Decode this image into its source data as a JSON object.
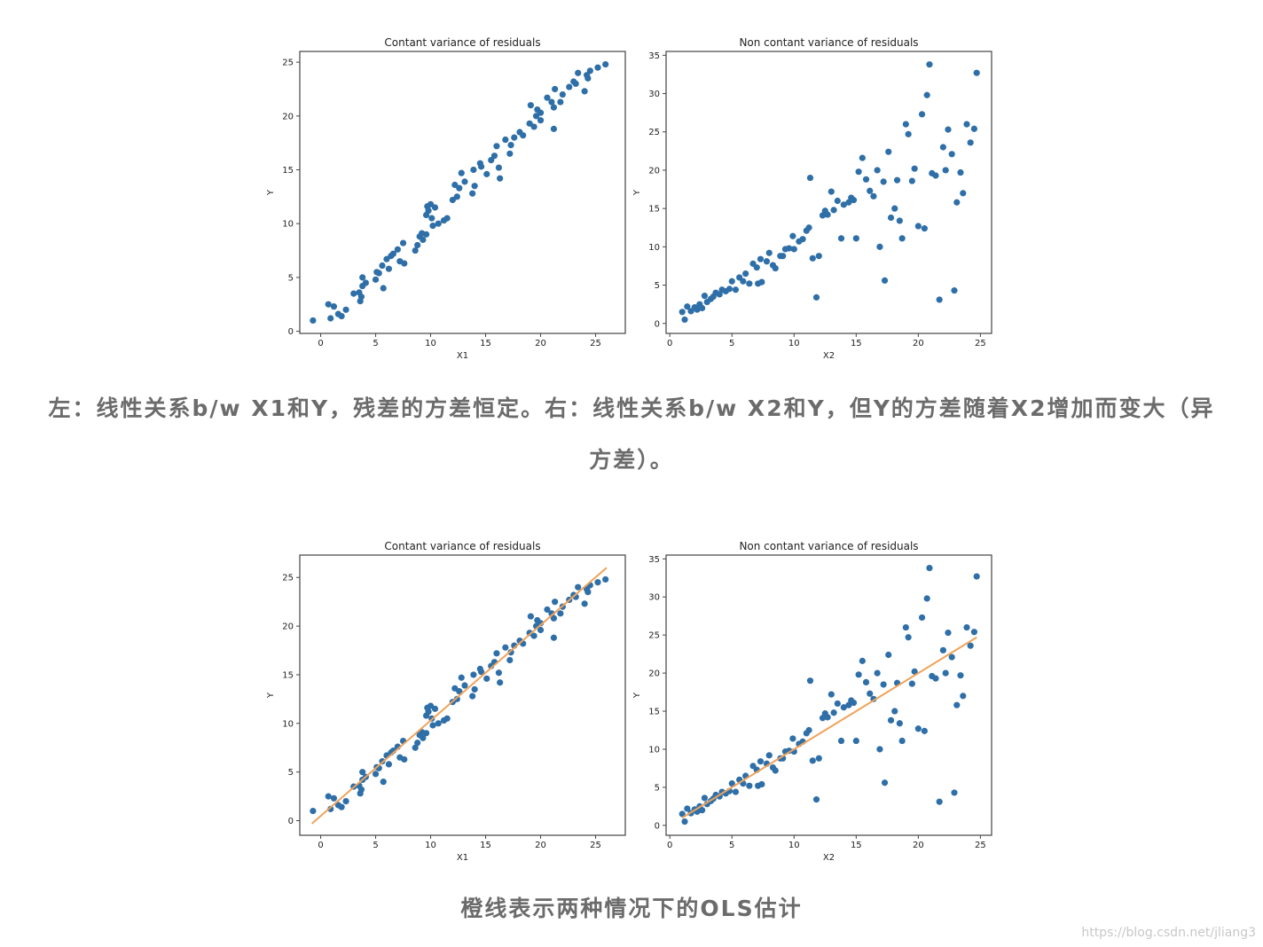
{
  "captions": [
    "左：线性关系b/w X1和Y，残差的方差恒定。右：线性关系b/w X2和Y，但Y的方差随着X2增加而变大（异方差）。",
    "橙线表示两种情况下的OLS估计"
  ],
  "watermark": "https://blog.csdn.net/jliang3",
  "chart_data": [
    {
      "type": "scatter",
      "title": "Contant variance of residuals",
      "xlabel": "X1",
      "ylabel": "Y",
      "xlim": [
        -1.9,
        27.7
      ],
      "ylim": [
        -0.2,
        26.0
      ],
      "xticks": [
        0,
        5,
        10,
        15,
        20,
        25
      ],
      "yticks": [
        0,
        5,
        10,
        15,
        20,
        25
      ],
      "series": [
        {
          "mode": "markers",
          "color": "#2f6fa8",
          "x": [
            -0.7,
            0.7,
            0.9,
            1.2,
            1.6,
            1.9,
            2.3,
            3.0,
            3.5,
            3.6,
            3.7,
            3.8,
            3.8,
            4.1,
            5.0,
            5.1,
            5.3,
            5.6,
            5.7,
            6.0,
            6.2,
            6.4,
            6.6,
            7.0,
            7.2,
            7.5,
            7.6,
            8.6,
            8.8,
            9.0,
            9.2,
            9.3,
            9.6,
            9.6,
            9.7,
            9.8,
            10.0,
            10.1,
            10.2,
            10.4,
            10.7,
            11.2,
            11.5,
            12.0,
            12.2,
            12.4,
            12.6,
            12.8,
            13.1,
            13.8,
            13.9,
            14.0,
            14.5,
            14.6,
            15.1,
            15.5,
            15.8,
            16.0,
            16.2,
            16.3,
            16.8,
            17.2,
            17.3,
            17.6,
            18.1,
            18.4,
            19.0,
            19.1,
            19.4,
            19.6,
            19.7,
            20.0,
            20.0,
            20.6,
            21.0,
            21.2,
            21.3,
            21.2,
            21.8,
            22.0,
            22.6,
            23.0,
            23.2,
            23.4,
            24.0,
            24.2,
            24.3,
            24.5,
            25.2,
            25.9
          ],
          "values": [
            1.0,
            2.5,
            1.2,
            2.3,
            1.6,
            1.4,
            2.0,
            3.5,
            3.6,
            2.8,
            3.2,
            4.2,
            5.0,
            4.5,
            4.8,
            5.5,
            5.4,
            6.1,
            4.0,
            6.7,
            5.8,
            7.0,
            7.2,
            7.6,
            6.5,
            8.2,
            6.3,
            7.5,
            8.0,
            8.8,
            9.1,
            8.5,
            9.0,
            10.8,
            11.6,
            11.2,
            11.8,
            10.5,
            9.8,
            11.5,
            10.0,
            10.3,
            10.5,
            12.2,
            13.6,
            12.5,
            13.3,
            14.7,
            13.9,
            12.8,
            15.0,
            13.5,
            15.6,
            15.3,
            14.6,
            15.9,
            16.3,
            17.2,
            15.2,
            14.2,
            17.8,
            16.5,
            17.3,
            18.0,
            18.5,
            18.2,
            19.3,
            21.0,
            19.0,
            20.0,
            20.6,
            20.3,
            19.6,
            21.7,
            21.3,
            18.8,
            22.5,
            20.8,
            21.3,
            22.0,
            22.7,
            23.2,
            23.0,
            24.0,
            22.3,
            23.8,
            23.5,
            24.2,
            24.5,
            24.8
          ]
        }
      ]
    },
    {
      "type": "scatter",
      "title": "Non contant variance of residuals",
      "xlabel": "X2",
      "ylabel": "Y",
      "xlim": [
        -0.3,
        25.9
      ],
      "ylim": [
        -1.3,
        35.5
      ],
      "xticks": [
        0,
        5,
        10,
        15,
        20,
        25
      ],
      "yticks": [
        0,
        5,
        10,
        15,
        20,
        25,
        30,
        35
      ],
      "series": [
        {
          "mode": "markers",
          "color": "#2f6fa8",
          "x": [
            1.0,
            1.2,
            1.4,
            1.7,
            2.0,
            2.2,
            2.4,
            2.6,
            2.8,
            3.0,
            3.3,
            3.5,
            3.7,
            4.0,
            4.2,
            4.5,
            4.8,
            5.0,
            5.3,
            5.6,
            5.9,
            6.1,
            6.4,
            6.7,
            7.0,
            7.1,
            7.3,
            7.4,
            7.8,
            8.0,
            8.3,
            8.5,
            8.9,
            9.1,
            9.3,
            9.6,
            9.9,
            10.0,
            10.4,
            10.7,
            11.0,
            11.2,
            11.3,
            11.5,
            11.8,
            12.0,
            12.3,
            12.5,
            12.7,
            13.0,
            13.2,
            13.5,
            13.8,
            14.0,
            14.4,
            14.6,
            14.8,
            15.0,
            15.2,
            15.5,
            15.8,
            16.1,
            16.4,
            16.7,
            16.9,
            17.2,
            17.3,
            17.6,
            17.8,
            18.1,
            18.3,
            18.5,
            18.7,
            19.0,
            19.2,
            19.5,
            19.7,
            20.0,
            20.3,
            20.5,
            20.7,
            20.9,
            21.1,
            21.4,
            21.7,
            22.0,
            22.2,
            22.4,
            22.7,
            22.9,
            23.1,
            23.4,
            23.6,
            23.9,
            24.2,
            24.5,
            24.7
          ],
          "values": [
            1.5,
            0.5,
            2.2,
            1.6,
            2.1,
            1.8,
            2.5,
            2.0,
            3.6,
            2.8,
            3.2,
            3.5,
            4.0,
            3.8,
            4.4,
            4.2,
            4.5,
            5.5,
            4.4,
            6.0,
            5.5,
            6.5,
            5.2,
            7.8,
            7.3,
            5.2,
            8.4,
            5.4,
            8.1,
            9.2,
            7.6,
            7.2,
            8.8,
            8.8,
            9.7,
            9.8,
            11.4,
            9.7,
            10.7,
            11.0,
            12.1,
            12.5,
            19.0,
            8.5,
            3.4,
            8.8,
            14.1,
            14.7,
            14.2,
            17.2,
            14.8,
            16.0,
            11.1,
            15.5,
            15.8,
            16.4,
            16.1,
            11.1,
            19.8,
            21.6,
            18.8,
            17.3,
            16.6,
            20.0,
            10.0,
            18.5,
            5.6,
            22.4,
            13.8,
            15.0,
            18.7,
            13.4,
            11.1,
            26.0,
            24.7,
            18.6,
            20.2,
            12.7,
            27.3,
            12.4,
            29.8,
            33.8,
            19.6,
            19.3,
            3.1,
            23.0,
            20.0,
            25.3,
            22.1,
            4.3,
            15.8,
            19.7,
            17.0,
            26.0,
            23.6,
            25.4,
            32.7
          ]
        }
      ]
    },
    {
      "type": "scatter",
      "title": "Contant variance of residuals",
      "xlabel": "X1",
      "ylabel": "Y",
      "xlim": [
        -1.9,
        27.7
      ],
      "ylim": [
        -1.5,
        27.3
      ],
      "xticks": [
        0,
        5,
        10,
        15,
        20,
        25
      ],
      "yticks": [
        0,
        5,
        10,
        15,
        20,
        25
      ],
      "series": [
        {
          "mode": "markers",
          "color": "#2f6fa8",
          "x": [
            -0.7,
            0.7,
            0.9,
            1.2,
            1.6,
            1.9,
            2.3,
            3.0,
            3.5,
            3.6,
            3.7,
            3.8,
            3.8,
            4.1,
            5.0,
            5.1,
            5.3,
            5.6,
            5.7,
            6.0,
            6.2,
            6.4,
            6.6,
            7.0,
            7.2,
            7.5,
            7.6,
            8.6,
            8.8,
            9.0,
            9.2,
            9.3,
            9.6,
            9.6,
            9.7,
            9.8,
            10.0,
            10.1,
            10.2,
            10.4,
            10.7,
            11.2,
            11.5,
            12.0,
            12.2,
            12.4,
            12.6,
            12.8,
            13.1,
            13.8,
            13.9,
            14.0,
            14.5,
            14.6,
            15.1,
            15.5,
            15.8,
            16.0,
            16.2,
            16.3,
            16.8,
            17.2,
            17.3,
            17.6,
            18.1,
            18.4,
            19.0,
            19.1,
            19.4,
            19.6,
            19.7,
            20.0,
            20.0,
            20.6,
            21.0,
            21.2,
            21.3,
            21.2,
            21.8,
            22.0,
            22.6,
            23.0,
            23.2,
            23.4,
            24.0,
            24.2,
            24.3,
            24.5,
            25.2,
            25.9
          ],
          "values": [
            1.0,
            2.5,
            1.2,
            2.3,
            1.6,
            1.4,
            2.0,
            3.5,
            3.6,
            2.8,
            3.2,
            4.2,
            5.0,
            4.5,
            4.8,
            5.5,
            5.4,
            6.1,
            4.0,
            6.7,
            5.8,
            7.0,
            7.2,
            7.6,
            6.5,
            8.2,
            6.3,
            7.5,
            8.0,
            8.8,
            9.1,
            8.5,
            9.0,
            10.8,
            11.6,
            11.2,
            11.8,
            10.5,
            9.8,
            11.5,
            10.0,
            10.3,
            10.5,
            12.2,
            13.6,
            12.5,
            13.3,
            14.7,
            13.9,
            12.8,
            15.0,
            13.5,
            15.6,
            15.3,
            14.6,
            15.9,
            16.3,
            17.2,
            15.2,
            14.2,
            17.8,
            16.5,
            17.3,
            18.0,
            18.5,
            18.2,
            19.3,
            21.0,
            19.0,
            20.0,
            20.6,
            20.3,
            19.6,
            21.7,
            21.3,
            18.8,
            22.5,
            20.8,
            21.3,
            22.0,
            22.7,
            23.2,
            23.0,
            24.0,
            22.3,
            23.8,
            23.5,
            24.2,
            24.5,
            24.8
          ]
        },
        {
          "mode": "line",
          "color": "#f0a35a",
          "x": [
            -0.8,
            26.0
          ],
          "values": [
            -0.3,
            26.0
          ]
        }
      ]
    },
    {
      "type": "scatter",
      "title": "Non contant variance of residuals",
      "xlabel": "X2",
      "ylabel": "Y",
      "xlim": [
        -0.3,
        25.9
      ],
      "ylim": [
        -1.3,
        35.5
      ],
      "xticks": [
        0,
        5,
        10,
        15,
        20,
        25
      ],
      "yticks": [
        0,
        5,
        10,
        15,
        20,
        25,
        30,
        35
      ],
      "series": [
        {
          "mode": "markers",
          "color": "#2f6fa8",
          "x": [
            1.0,
            1.2,
            1.4,
            1.7,
            2.0,
            2.2,
            2.4,
            2.6,
            2.8,
            3.0,
            3.3,
            3.5,
            3.7,
            4.0,
            4.2,
            4.5,
            4.8,
            5.0,
            5.3,
            5.6,
            5.9,
            6.1,
            6.4,
            6.7,
            7.0,
            7.1,
            7.3,
            7.4,
            7.8,
            8.0,
            8.3,
            8.5,
            8.9,
            9.1,
            9.3,
            9.6,
            9.9,
            10.0,
            10.4,
            10.7,
            11.0,
            11.2,
            11.3,
            11.5,
            11.8,
            12.0,
            12.3,
            12.5,
            12.7,
            13.0,
            13.2,
            13.5,
            13.8,
            14.0,
            14.4,
            14.6,
            14.8,
            15.0,
            15.2,
            15.5,
            15.8,
            16.1,
            16.4,
            16.7,
            16.9,
            17.2,
            17.3,
            17.6,
            17.8,
            18.1,
            18.3,
            18.5,
            18.7,
            19.0,
            19.2,
            19.5,
            19.7,
            20.0,
            20.3,
            20.5,
            20.7,
            20.9,
            21.1,
            21.4,
            21.7,
            22.0,
            22.2,
            22.4,
            22.7,
            22.9,
            23.1,
            23.4,
            23.6,
            23.9,
            24.2,
            24.5,
            24.7
          ],
          "values": [
            1.5,
            0.5,
            2.2,
            1.6,
            2.1,
            1.8,
            2.5,
            2.0,
            3.6,
            2.8,
            3.2,
            3.5,
            4.0,
            3.8,
            4.4,
            4.2,
            4.5,
            5.5,
            4.4,
            6.0,
            5.5,
            6.5,
            5.2,
            7.8,
            7.3,
            5.2,
            8.4,
            5.4,
            8.1,
            9.2,
            7.6,
            7.2,
            8.8,
            8.8,
            9.7,
            9.8,
            11.4,
            9.7,
            10.7,
            11.0,
            12.1,
            12.5,
            19.0,
            8.5,
            3.4,
            8.8,
            14.1,
            14.7,
            14.2,
            17.2,
            14.8,
            16.0,
            11.1,
            15.5,
            15.8,
            16.4,
            16.1,
            11.1,
            19.8,
            21.6,
            18.8,
            17.3,
            16.6,
            20.0,
            10.0,
            18.5,
            5.6,
            22.4,
            13.8,
            15.0,
            18.7,
            13.4,
            11.1,
            26.0,
            24.7,
            18.6,
            20.2,
            12.7,
            27.3,
            12.4,
            29.8,
            33.8,
            19.6,
            19.3,
            3.1,
            23.0,
            20.0,
            25.3,
            22.1,
            4.3,
            15.8,
            19.7,
            17.0,
            26.0,
            23.6,
            25.4,
            32.7
          ]
        },
        {
          "mode": "line",
          "color": "#f0a35a",
          "x": [
            1.0,
            24.7
          ],
          "values": [
            1.0,
            24.7
          ]
        }
      ]
    }
  ]
}
